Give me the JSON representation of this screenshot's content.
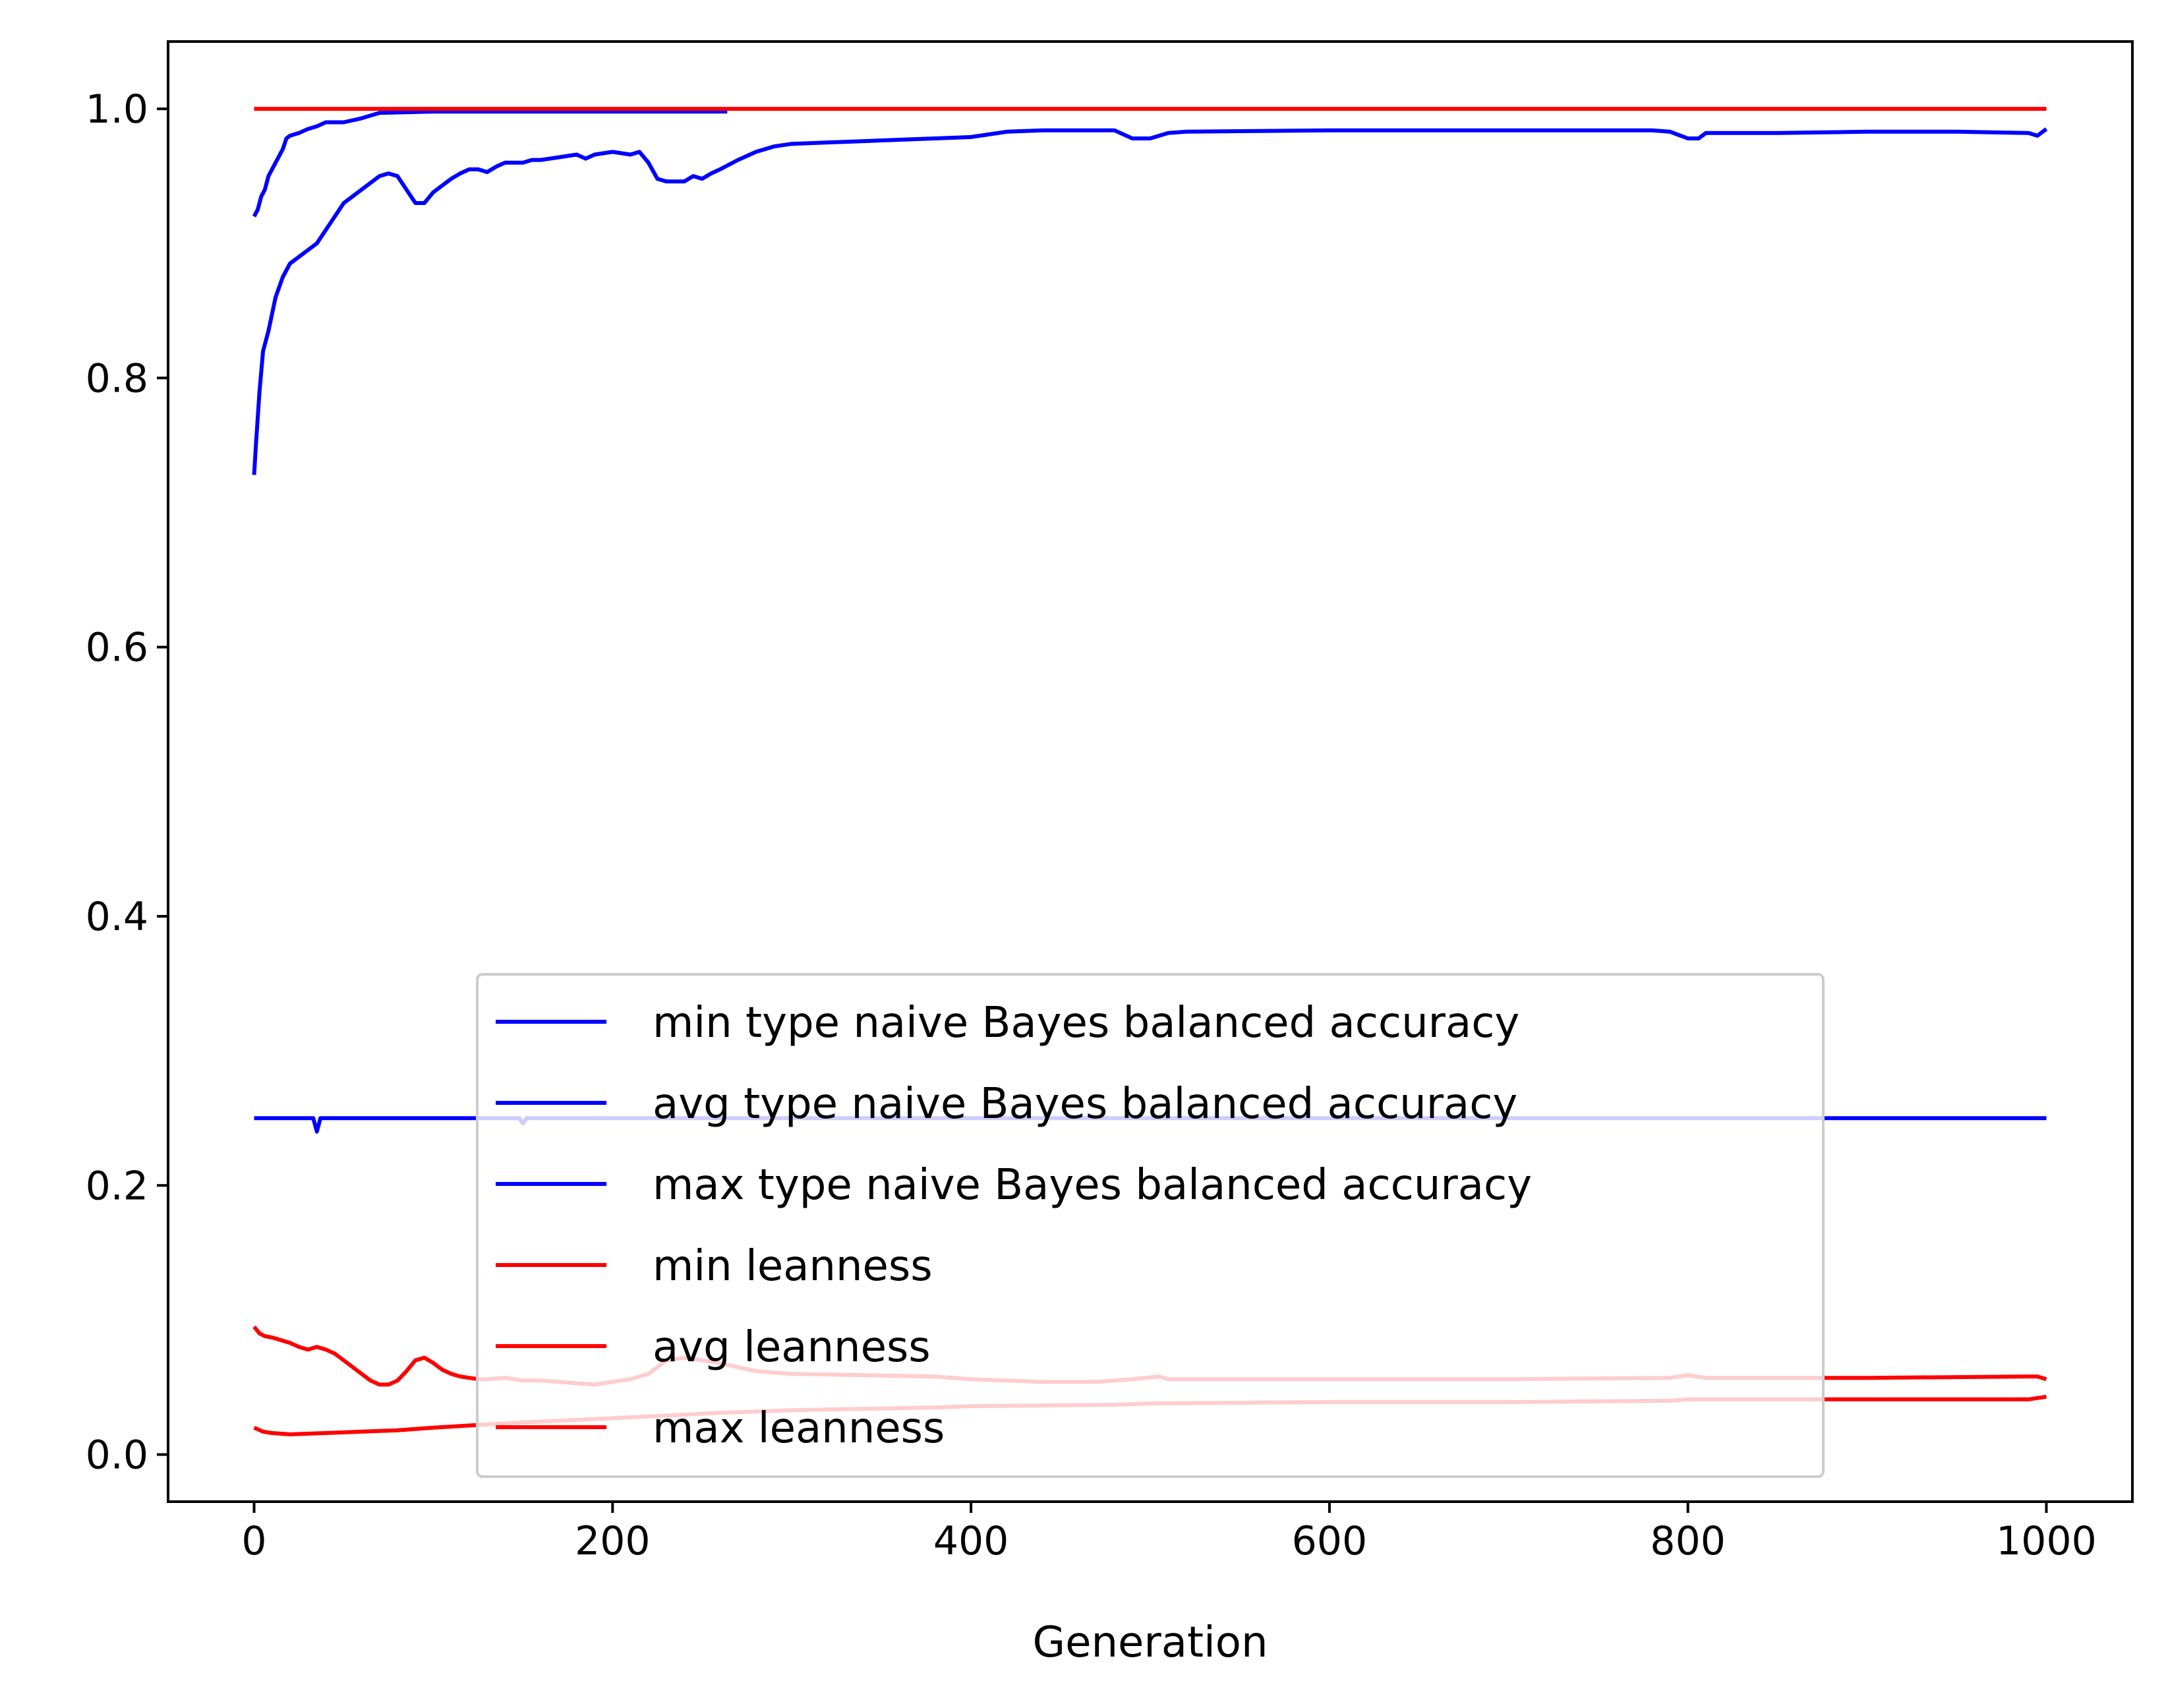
{
  "chart_data": {
    "type": "line",
    "title": "",
    "xlabel": "Generation",
    "ylabel": "",
    "xlim": [
      -48,
      1048
    ],
    "ylim": [
      -0.035,
      1.05
    ],
    "x_ticks": [
      0,
      200,
      400,
      600,
      800,
      1000
    ],
    "x_tick_labels": [
      "0",
      "200",
      "400",
      "600",
      "800",
      "1000"
    ],
    "y_ticks": [
      0.0,
      0.2,
      0.4,
      0.6,
      0.8,
      1.0
    ],
    "y_tick_labels": [
      "0.0",
      "0.2",
      "0.4",
      "0.6",
      "0.8",
      "1.0"
    ],
    "grid": false,
    "legend_position": "lower center",
    "series": [
      {
        "name": "min type naive Bayes balanced accuracy",
        "color": "#0000ff",
        "x": [
          0,
          20,
          33,
          35,
          37,
          60,
          100,
          148,
          150,
          152,
          200,
          400,
          600,
          800,
          1000
        ],
        "y": [
          0.25,
          0.25,
          0.25,
          0.24,
          0.25,
          0.25,
          0.25,
          0.25,
          0.246,
          0.25,
          0.25,
          0.25,
          0.25,
          0.25,
          0.25
        ]
      },
      {
        "name": "avg type naive Bayes balanced accuracy",
        "color": "#0000ff",
        "x": [
          0,
          1,
          3,
          5,
          8,
          12,
          16,
          20,
          25,
          30,
          35,
          40,
          45,
          50,
          55,
          60,
          65,
          70,
          75,
          80,
          85,
          90,
          95,
          100,
          105,
          110,
          115,
          120,
          125,
          130,
          135,
          140,
          145,
          150,
          155,
          160,
          170,
          180,
          185,
          190,
          200,
          210,
          215,
          220,
          225,
          230,
          240,
          245,
          250,
          255,
          260,
          270,
          280,
          290,
          300,
          320,
          340,
          360,
          380,
          400,
          420,
          440,
          470,
          480,
          490,
          500,
          510,
          520,
          600,
          700,
          780,
          790,
          800,
          806,
          810,
          850,
          900,
          950,
          990,
          995,
          1000
        ],
        "y": [
          0.728,
          0.75,
          0.79,
          0.82,
          0.835,
          0.86,
          0.875,
          0.885,
          0.89,
          0.895,
          0.9,
          0.91,
          0.92,
          0.93,
          0.935,
          0.94,
          0.945,
          0.95,
          0.952,
          0.95,
          0.94,
          0.93,
          0.93,
          0.938,
          0.943,
          0.948,
          0.952,
          0.955,
          0.955,
          0.953,
          0.957,
          0.96,
          0.96,
          0.96,
          0.962,
          0.962,
          0.964,
          0.966,
          0.963,
          0.966,
          0.968,
          0.966,
          0.968,
          0.96,
          0.948,
          0.946,
          0.946,
          0.95,
          0.948,
          0.952,
          0.955,
          0.962,
          0.968,
          0.972,
          0.974,
          0.975,
          0.976,
          0.977,
          0.978,
          0.979,
          0.983,
          0.984,
          0.984,
          0.984,
          0.978,
          0.978,
          0.982,
          0.983,
          0.984,
          0.984,
          0.984,
          0.983,
          0.978,
          0.978,
          0.982,
          0.982,
          0.983,
          0.983,
          0.982,
          0.98,
          0.985
        ]
      },
      {
        "name": "max type naive Bayes balanced accuracy",
        "color": "#0000ff",
        "x": [
          0,
          2,
          4,
          6,
          8,
          10,
          12,
          14,
          16,
          18,
          20,
          25,
          30,
          35,
          40,
          50,
          60,
          65,
          70,
          100,
          150,
          200,
          260,
          264
        ],
        "y": [
          0.92,
          0.925,
          0.935,
          0.94,
          0.95,
          0.955,
          0.96,
          0.965,
          0.97,
          0.978,
          0.98,
          0.982,
          0.985,
          0.987,
          0.99,
          0.99,
          0.993,
          0.995,
          0.997,
          0.998,
          0.998,
          0.998,
          0.998,
          0.998
        ]
      },
      {
        "name": "min leanness",
        "color": "#ff0000",
        "x": [
          0,
          5,
          10,
          20,
          40,
          60,
          80,
          100,
          150,
          200,
          260,
          300,
          380,
          400,
          480,
          500,
          600,
          700,
          790,
          800,
          900,
          990,
          995,
          1000
        ],
        "y": [
          0.02,
          0.017,
          0.016,
          0.015,
          0.016,
          0.017,
          0.018,
          0.02,
          0.024,
          0.027,
          0.031,
          0.033,
          0.035,
          0.036,
          0.037,
          0.038,
          0.039,
          0.039,
          0.04,
          0.041,
          0.041,
          0.041,
          0.042,
          0.043
        ]
      },
      {
        "name": "avg leanness",
        "color": "#ff0000",
        "x": [
          0,
          3,
          6,
          10,
          15,
          20,
          25,
          30,
          35,
          40,
          45,
          50,
          55,
          60,
          65,
          70,
          75,
          80,
          85,
          90,
          95,
          100,
          105,
          110,
          115,
          120,
          125,
          130,
          140,
          150,
          160,
          170,
          180,
          190,
          200,
          210,
          220,
          225,
          230,
          240,
          250,
          260,
          270,
          280,
          300,
          340,
          380,
          400,
          420,
          440,
          470,
          480,
          490,
          505,
          510,
          600,
          700,
          790,
          800,
          810,
          900,
          990,
          995,
          1000
        ],
        "y": [
          0.095,
          0.09,
          0.088,
          0.087,
          0.085,
          0.083,
          0.08,
          0.078,
          0.08,
          0.078,
          0.075,
          0.07,
          0.065,
          0.06,
          0.055,
          0.052,
          0.052,
          0.055,
          0.062,
          0.07,
          0.072,
          0.068,
          0.063,
          0.06,
          0.058,
          0.057,
          0.056,
          0.056,
          0.057,
          0.055,
          0.055,
          0.054,
          0.053,
          0.052,
          0.054,
          0.056,
          0.06,
          0.065,
          0.07,
          0.072,
          0.07,
          0.068,
          0.065,
          0.062,
          0.06,
          0.059,
          0.058,
          0.056,
          0.055,
          0.054,
          0.054,
          0.055,
          0.056,
          0.058,
          0.056,
          0.056,
          0.056,
          0.057,
          0.059,
          0.057,
          0.057,
          0.058,
          0.058,
          0.056
        ]
      },
      {
        "name": "max leanness",
        "color": "#ff0000",
        "x": [
          0,
          1000
        ],
        "y": [
          1.0,
          1.0
        ]
      }
    ]
  }
}
